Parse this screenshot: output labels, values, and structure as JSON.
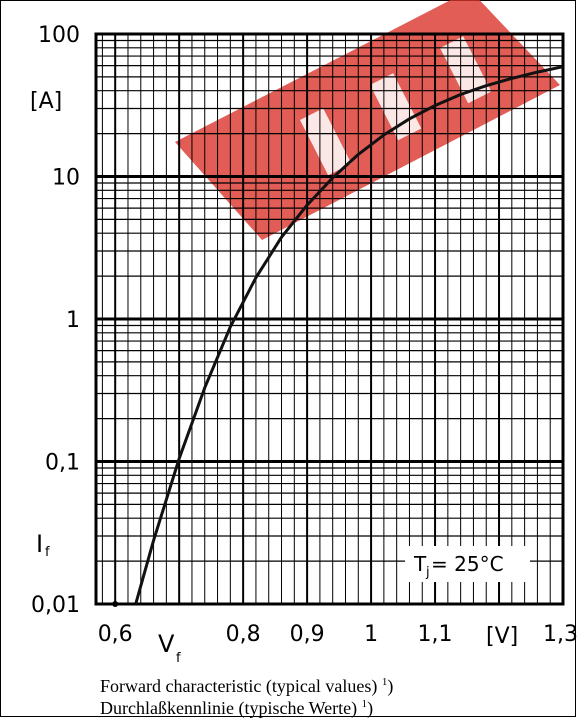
{
  "chart_data": {
    "type": "line",
    "title": "",
    "xlabel": "V",
    "xlabel_sub": "f",
    "ylabel": "I",
    "ylabel_sub": "f",
    "x_unit": "[V]",
    "y_unit": "[A]",
    "xlim": [
      0.57,
      1.3
    ],
    "ylim": [
      0.01,
      100
    ],
    "y_scale": "log",
    "grid": true,
    "x_ticks": [
      {
        "value": 0.6,
        "label": "0,6"
      },
      {
        "value": 0.8,
        "label": "0,8"
      },
      {
        "value": 0.9,
        "label": "0,9"
      },
      {
        "value": 1.0,
        "label": "1"
      },
      {
        "value": 1.1,
        "label": "1,1"
      },
      {
        "value": 1.3,
        "label": "1,3"
      }
    ],
    "y_ticks": [
      {
        "value": 100,
        "label": "100"
      },
      {
        "value": 10,
        "label": "10"
      },
      {
        "value": 1,
        "label": "1"
      },
      {
        "value": 0.1,
        "label": "0,1"
      },
      {
        "value": 0.01,
        "label": "0,01"
      }
    ],
    "series": [
      {
        "x": [
          0.632,
          0.66,
          0.7,
          0.74,
          0.78,
          0.82,
          0.86,
          0.9,
          0.94,
          0.98,
          1.02,
          1.06,
          1.1,
          1.14,
          1.18,
          1.22,
          1.26,
          1.3
        ],
        "y": [
          0.01,
          0.028,
          0.105,
          0.33,
          0.88,
          1.95,
          3.75,
          6.3,
          9.8,
          14.3,
          19.6,
          25.4,
          31.5,
          37.6,
          43.4,
          48.8,
          54.0,
          59.0
        ]
      }
    ],
    "annotation": {
      "symbol": "T",
      "sub": "j",
      "text": " = 25°C"
    },
    "captions": [
      {
        "text": "Forward characteristic (typical values) ",
        "ref": "1",
        "tail": ")"
      },
      {
        "text": "Durchlaßkennlinie (typische Werte) ",
        "ref": "1",
        "tail": ")"
      }
    ],
    "colors": {
      "grid": "#000000",
      "curve": "#111111",
      "watermark": "#d9342b"
    }
  }
}
